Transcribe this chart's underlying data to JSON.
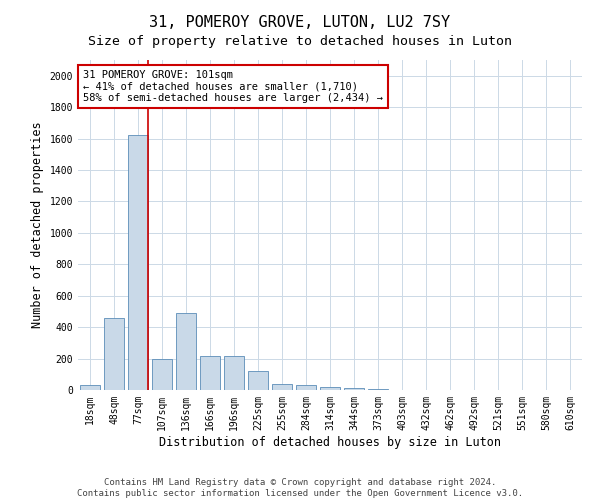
{
  "title": "31, POMEROY GROVE, LUTON, LU2 7SY",
  "subtitle": "Size of property relative to detached houses in Luton",
  "xlabel": "Distribution of detached houses by size in Luton",
  "ylabel": "Number of detached properties",
  "categories": [
    "18sqm",
    "48sqm",
    "77sqm",
    "107sqm",
    "136sqm",
    "166sqm",
    "196sqm",
    "225sqm",
    "255sqm",
    "284sqm",
    "314sqm",
    "344sqm",
    "373sqm",
    "403sqm",
    "432sqm",
    "462sqm",
    "492sqm",
    "521sqm",
    "551sqm",
    "580sqm",
    "610sqm"
  ],
  "values": [
    30,
    460,
    1620,
    195,
    490,
    215,
    215,
    120,
    40,
    35,
    20,
    15,
    5,
    0,
    0,
    0,
    0,
    0,
    0,
    0,
    0
  ],
  "bar_color": "#c9d9e8",
  "bar_edge_color": "#5b8db8",
  "vline_x_idx": 2,
  "vline_color": "#cc0000",
  "ylim": [
    0,
    2100
  ],
  "yticks": [
    0,
    200,
    400,
    600,
    800,
    1000,
    1200,
    1400,
    1600,
    1800,
    2000
  ],
  "annotation_line1": "31 POMEROY GROVE: 101sqm",
  "annotation_line2": "← 41% of detached houses are smaller (1,710)",
  "annotation_line3": "58% of semi-detached houses are larger (2,434) →",
  "annotation_box_color": "#ffffff",
  "annotation_box_edge_color": "#cc0000",
  "footnote": "Contains HM Land Registry data © Crown copyright and database right 2024.\nContains public sector information licensed under the Open Government Licence v3.0.",
  "grid_color": "#ccd9e6",
  "background_color": "#ffffff",
  "title_fontsize": 11,
  "subtitle_fontsize": 9.5,
  "axis_label_fontsize": 8.5,
  "tick_fontsize": 7,
  "annotation_fontsize": 7.5,
  "footnote_fontsize": 6.5
}
